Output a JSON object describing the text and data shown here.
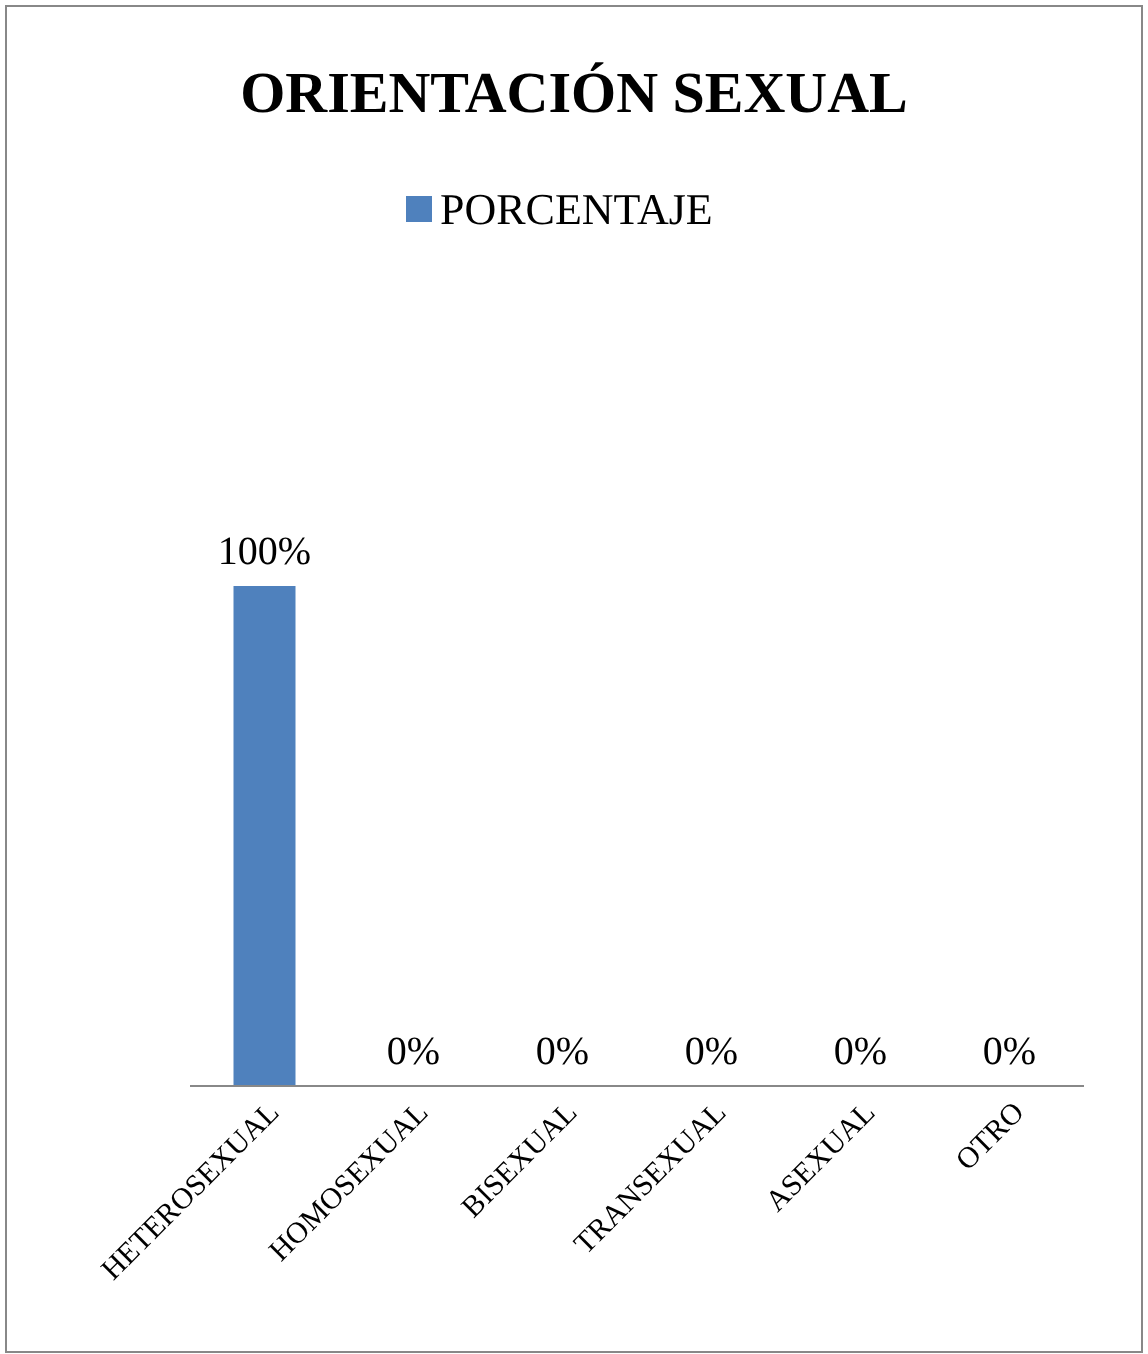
{
  "chart_data": {
    "type": "bar",
    "title": "ORIENTACIÓN SEXUAL",
    "categories": [
      "HETEROSEXUAL",
      "HOMOSEXUAL",
      "BISEXUAL",
      "TRANSEXUAL",
      "ASEXUAL",
      "OTRO"
    ],
    "series": [
      {
        "name": "PORCENTAJE",
        "color": "#4f81bd",
        "values": [
          100,
          0,
          0,
          0,
          0,
          0
        ],
        "value_labels": [
          "100%",
          "0%",
          "0%",
          "0%",
          "0%",
          "0%"
        ]
      }
    ],
    "legend": "top",
    "grid": false
  }
}
